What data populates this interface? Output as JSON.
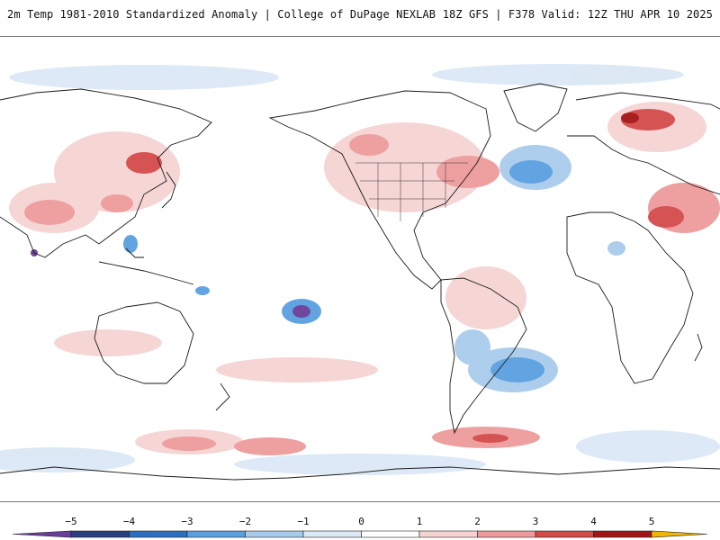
{
  "header": {
    "title": "2m Temp 1981-2010 Standardized Anomaly | College of DuPage NEXLAB",
    "run_info": "18Z GFS | F378 Valid: 12Z THU APR 10 2025"
  },
  "legend": {
    "ticks": [
      "-5",
      "-4",
      "-3",
      "-2",
      "-1",
      "0",
      "1",
      "2",
      "3",
      "4",
      "5"
    ],
    "colors": {
      "lt_minus5": "#6a3d9a",
      "minus5_to_minus4": "#2b3f7e",
      "minus4_to_minus3": "#2c6fc0",
      "minus3_to_minus2": "#5aa0e0",
      "minus2_to_minus1": "#a9cbeb",
      "minus1_to_0": "#dbe8f5",
      "zero_to_1": "#ffffff",
      "one_to_2": "#f6d3d3",
      "two_to_3": "#ee9a9a",
      "three_to_4": "#d44a4a",
      "four_to_5": "#a31414",
      "gt_5": "#f2b600"
    }
  },
  "map": {
    "projection": "equirectangular",
    "center_longitude": "180",
    "features": [
      "continents",
      "country-borders",
      "us-state-borders",
      "anomaly-shading"
    ]
  }
}
